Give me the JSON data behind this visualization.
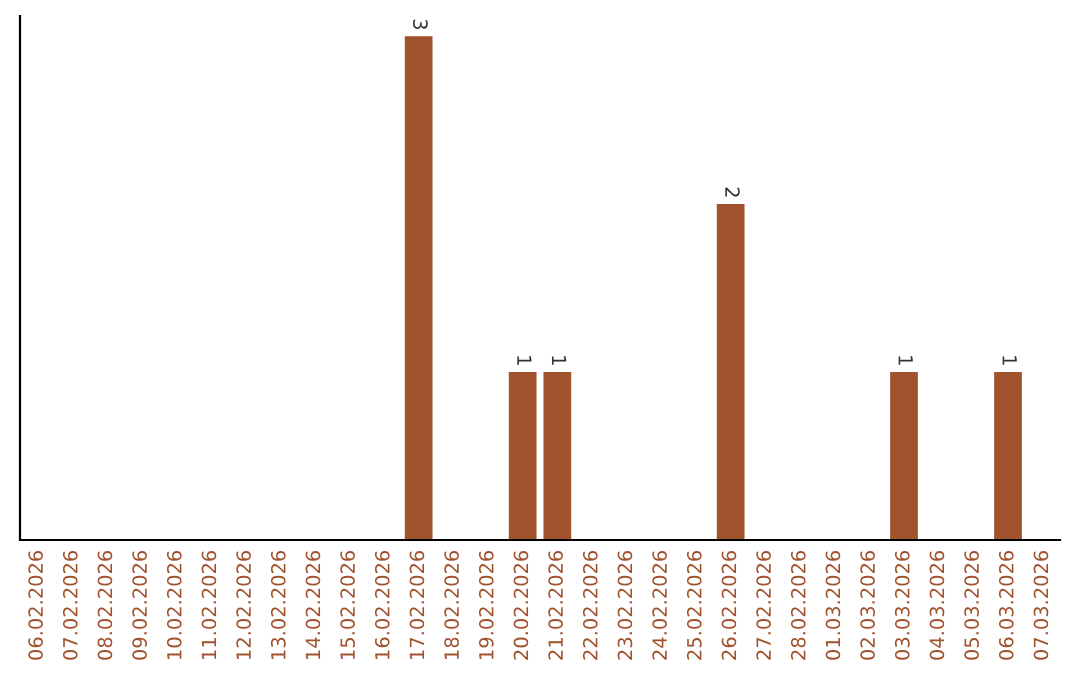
{
  "chart_data": {
    "type": "bar",
    "categories": [
      "06.02.2026",
      "07.02.2026",
      "08.02.2026",
      "09.02.2026",
      "10.02.2026",
      "11.02.2026",
      "12.02.2026",
      "13.02.2026",
      "14.02.2026",
      "15.02.2026",
      "16.02.2026",
      "17.02.2026",
      "18.02.2026",
      "19.02.2026",
      "20.02.2026",
      "21.02.2026",
      "22.02.2026",
      "23.02.2026",
      "24.02.2026",
      "25.02.2026",
      "26.02.2026",
      "27.02.2026",
      "28.02.2026",
      "01.03.2026",
      "02.03.2026",
      "03.03.2026",
      "04.03.2026",
      "05.03.2026",
      "06.03.2026",
      "07.03.2026"
    ],
    "values": [
      0,
      0,
      0,
      0,
      0,
      0,
      0,
      0,
      0,
      0,
      0,
      3,
      0,
      0,
      1,
      1,
      0,
      0,
      0,
      0,
      2,
      0,
      0,
      0,
      0,
      1,
      0,
      0,
      1,
      0
    ],
    "value_labels": [
      null,
      null,
      null,
      null,
      null,
      null,
      null,
      null,
      null,
      null,
      null,
      "3",
      null,
      null,
      "1",
      "1",
      null,
      null,
      null,
      null,
      "2",
      null,
      null,
      null,
      null,
      "1",
      null,
      null,
      "1",
      null
    ],
    "color": "#a0522d",
    "tick_labels": "x",
    "grid": false,
    "legend": false
  }
}
